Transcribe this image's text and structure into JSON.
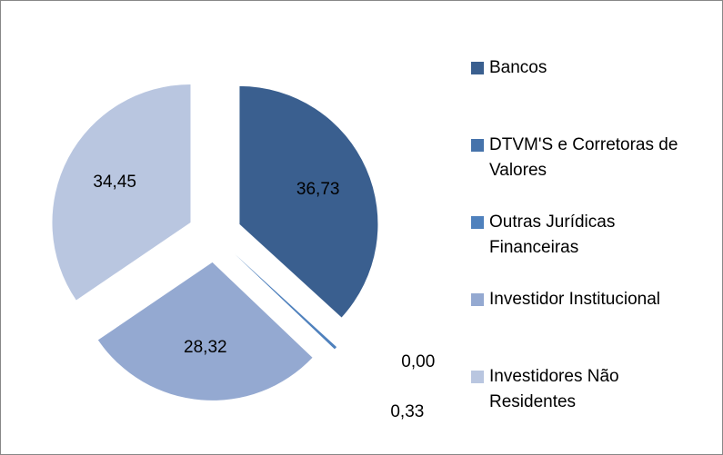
{
  "chart_data": {
    "type": "pie",
    "categories": [
      "Bancos",
      "DTVM'S e Corretoras de Valores",
      "Outras Jurídicas Financeiras",
      "Investidor Institucional",
      "Investidores Não Residentes"
    ],
    "values": [
      36.73,
      0.0,
      0.33,
      28.32,
      34.45
    ],
    "value_labels": [
      "36,73",
      "0,00",
      "0,33",
      "28,32",
      "34,45"
    ],
    "colors": [
      "#3a5f8f",
      "#4673ab",
      "#4f81bd",
      "#94a9d1",
      "#b9c6e0"
    ],
    "legend": "right"
  }
}
